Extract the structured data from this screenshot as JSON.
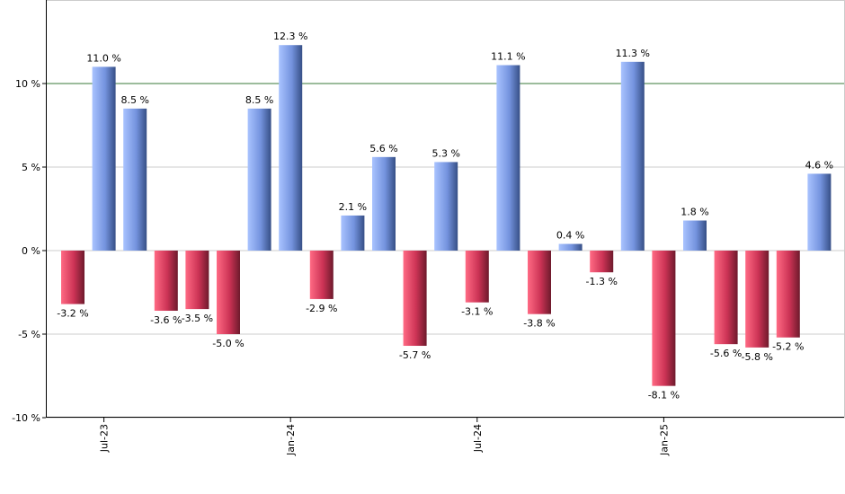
{
  "chart_data": {
    "type": "bar",
    "categories": [
      "Jun-23",
      "Jul-23",
      "Aug-23",
      "Sep-23",
      "Oct-23",
      "Nov-23",
      "Dec-23",
      "Jan-24",
      "Feb-24",
      "Mar-24",
      "Apr-24",
      "May-24",
      "Jun-24",
      "Jul-24",
      "Aug-24",
      "Sep-24",
      "Oct-24",
      "Nov-24",
      "Dec-24",
      "Jan-25",
      "Feb-25",
      "Mar-25",
      "Apr-25",
      "May-25",
      "Jun-25"
    ],
    "values": [
      -3.2,
      11.0,
      8.5,
      -3.6,
      -3.5,
      -5.0,
      8.5,
      12.3,
      -2.9,
      2.1,
      5.6,
      -5.7,
      5.3,
      -3.1,
      11.1,
      -3.8,
      0.4,
      -1.3,
      11.3,
      -8.1,
      1.8,
      -5.6,
      -5.8,
      -5.2,
      4.6
    ],
    "data_labels": [
      "-3.2 %",
      "11.0 %",
      "8.5 %",
      "-3.6 %",
      "-3.5 %",
      "-5.0 %",
      "8.5 %",
      "12.3 %",
      "-2.9 %",
      "2.1 %",
      "5.6 %",
      "-5.7 %",
      "5.3 %",
      "-3.1 %",
      "11.1 %",
      "-3.8 %",
      "0.4 %",
      "-1.3 %",
      "11.3 %",
      "-8.1 %",
      "1.8 %",
      "-5.6 %",
      "-5.8 %",
      "-5.2 %",
      "4.6 %"
    ],
    "x_tick_labels": [
      {
        "label": "Jul-23",
        "category": "Jul-23"
      },
      {
        "label": "Jan-24",
        "category": "Jan-24"
      },
      {
        "label": "Jul-24",
        "category": "Jul-24"
      },
      {
        "label": "Jan-25",
        "category": "Jan-25"
      }
    ],
    "y_ticks": [
      {
        "value": 10,
        "label": "10 %"
      },
      {
        "value": 5,
        "label": "5 %"
      },
      {
        "value": 0,
        "label": "0 %"
      },
      {
        "value": -5,
        "label": "-5 %"
      },
      {
        "value": -10,
        "label": "-10 %"
      }
    ],
    "ylim": [
      -10,
      15
    ],
    "reference_line": 10,
    "grid": true,
    "colors": {
      "positive": "#7a9ae6",
      "negative": "#cc3355",
      "reference_line": "#3a7a3a",
      "grid": "#cccccc"
    }
  }
}
